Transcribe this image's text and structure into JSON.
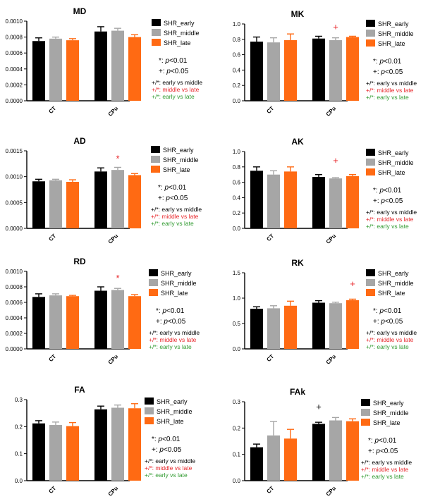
{
  "colors": {
    "early": "#000000",
    "middle": "#a6a6a6",
    "late": "#ff6a13",
    "red": "#e8262a",
    "green": "#2f9a2f",
    "black": "#000000"
  },
  "legend": {
    "entries": [
      "SHR_early",
      "SHR_middle",
      "SHR_late"
    ],
    "sig1_sym": "*: ",
    "sig1_p": "p",
    "sig1_val": "<0.01",
    "sig2_sym": "+: ",
    "sig2_p": "p",
    "sig2_val": "<0.05",
    "cmp1": "+/*: early vs middle",
    "cmp2": "+/*: middle vs late",
    "cmp3": "+/*: early vs late"
  },
  "chart_data": [
    {
      "type": "bar",
      "title": "MD",
      "categories": [
        "CT",
        "CPu"
      ],
      "series": [
        {
          "name": "SHR_early",
          "values": [
            0.00075,
            0.00087
          ],
          "errors": [
            4e-05,
            6e-05
          ]
        },
        {
          "name": "SHR_middle",
          "values": [
            0.00078,
            0.00088
          ],
          "errors": [
            2e-05,
            3e-05
          ]
        },
        {
          "name": "SHR_late",
          "values": [
            0.00076,
            0.0008
          ],
          "errors": [
            2e-05,
            3e-05
          ]
        }
      ],
      "ylim": [
        0,
        0.001
      ],
      "yticks": [
        "0.0000",
        "0.0002",
        "0.0004",
        "0.0006",
        "0.0008",
        "0.0010"
      ],
      "annotations": []
    },
    {
      "type": "bar",
      "title": "MK",
      "categories": [
        "CT",
        "CPu"
      ],
      "series": [
        {
          "name": "SHR_early",
          "values": [
            0.77,
            0.81
          ],
          "errors": [
            0.06,
            0.03
          ]
        },
        {
          "name": "SHR_middle",
          "values": [
            0.76,
            0.79
          ],
          "errors": [
            0.06,
            0.03
          ]
        },
        {
          "name": "SHR_late",
          "values": [
            0.79,
            0.83
          ],
          "errors": [
            0.08,
            0.01
          ]
        }
      ],
      "ylim": [
        0,
        1.0
      ],
      "yticks": [
        "0.0",
        "0.2",
        "0.4",
        "0.6",
        "0.8",
        "1.0"
      ],
      "annotations": [
        {
          "text": "+",
          "category": 1,
          "series": 1,
          "y": 0.97,
          "color": "red"
        }
      ]
    },
    {
      "type": "bar",
      "title": "AD",
      "categories": [
        "CT",
        "CPu"
      ],
      "series": [
        {
          "name": "SHR_early",
          "values": [
            0.00091,
            0.0011
          ],
          "errors": [
            4e-05,
            7e-05
          ]
        },
        {
          "name": "SHR_middle",
          "values": [
            0.00093,
            0.00113
          ],
          "errors": [
            2e-05,
            5e-05
          ]
        },
        {
          "name": "SHR_late",
          "values": [
            0.0009,
            0.00103
          ],
          "errors": [
            4e-05,
            3e-05
          ]
        }
      ],
      "ylim": [
        0,
        0.0015
      ],
      "yticks": [
        "0.0000",
        "0.0005",
        "0.0010",
        "0.0015"
      ],
      "annotations": [
        {
          "text": "*",
          "category": 1,
          "series": 1,
          "y": 0.00136,
          "color": "red"
        }
      ]
    },
    {
      "type": "bar",
      "title": "AK",
      "categories": [
        "CT",
        "CPu"
      ],
      "series": [
        {
          "name": "SHR_early",
          "values": [
            0.75,
            0.67
          ],
          "errors": [
            0.05,
            0.03
          ]
        },
        {
          "name": "SHR_middle",
          "values": [
            0.7,
            0.65
          ],
          "errors": [
            0.05,
            0.01
          ]
        },
        {
          "name": "SHR_late",
          "values": [
            0.74,
            0.68
          ],
          "errors": [
            0.06,
            0.02
          ]
        }
      ],
      "ylim": [
        0,
        1.0
      ],
      "yticks": [
        "0.0",
        "0.2",
        "0.4",
        "0.6",
        "0.8",
        "1.0"
      ],
      "annotations": [
        {
          "text": "+",
          "category": 1,
          "series": 1,
          "y": 0.89,
          "color": "red"
        }
      ]
    },
    {
      "type": "bar",
      "title": "RD",
      "categories": [
        "CT",
        "CPu"
      ],
      "series": [
        {
          "name": "SHR_early",
          "values": [
            0.00067,
            0.00075
          ],
          "errors": [
            4e-05,
            5e-05
          ]
        },
        {
          "name": "SHR_middle",
          "values": [
            0.00069,
            0.00076
          ],
          "errors": [
            2e-05,
            2e-05
          ]
        },
        {
          "name": "SHR_late",
          "values": [
            0.00068,
            0.00068
          ],
          "errors": [
            1e-05,
            2e-05
          ]
        }
      ],
      "ylim": [
        0,
        0.001
      ],
      "yticks": [
        "0.0000",
        "0.0002",
        "0.0004",
        "0.0006",
        "0.0008",
        "0.0010"
      ],
      "annotations": [
        {
          "text": "*",
          "category": 1,
          "series": 1,
          "y": 0.00092,
          "color": "red"
        }
      ]
    },
    {
      "type": "bar",
      "title": "RK",
      "categories": [
        "CT",
        "CPu"
      ],
      "series": [
        {
          "name": "SHR_early",
          "values": [
            0.79,
            0.91
          ],
          "errors": [
            0.04,
            0.04
          ]
        },
        {
          "name": "SHR_middle",
          "values": [
            0.8,
            0.9
          ],
          "errors": [
            0.05,
            0.02
          ]
        },
        {
          "name": "SHR_late",
          "values": [
            0.85,
            0.96
          ],
          "errors": [
            0.09,
            0.02
          ]
        }
      ],
      "ylim": [
        0,
        1.5
      ],
      "yticks": [
        "0.0",
        "0.5",
        "1.0",
        "1.5"
      ],
      "annotations": [
        {
          "text": "+",
          "category": 1,
          "series": 2,
          "y": 1.29,
          "color": "red"
        }
      ]
    },
    {
      "type": "bar",
      "title": "FA",
      "categories": [
        "CT",
        "CPu"
      ],
      "series": [
        {
          "name": "SHR_early",
          "values": [
            0.212,
            0.264
          ],
          "errors": [
            0.01,
            0.012
          ]
        },
        {
          "name": "SHR_middle",
          "values": [
            0.206,
            0.27
          ],
          "errors": [
            0.011,
            0.01
          ]
        },
        {
          "name": "SHR_late",
          "values": [
            0.202,
            0.268
          ],
          "errors": [
            0.013,
            0.017
          ]
        }
      ],
      "ylim": [
        0,
        0.3
      ],
      "yticks": [
        "0.0",
        "0.1",
        "0.2",
        "0.3"
      ],
      "annotations": []
    },
    {
      "type": "bar",
      "title": "FAk",
      "categories": [
        "CT",
        "CPu"
      ],
      "series": [
        {
          "name": "SHR_early",
          "values": [
            0.127,
            0.216
          ],
          "errors": [
            0.012,
            0.006
          ]
        },
        {
          "name": "SHR_middle",
          "values": [
            0.172,
            0.229
          ],
          "errors": [
            0.053,
            0.011
          ]
        },
        {
          "name": "SHR_late",
          "values": [
            0.16,
            0.226
          ],
          "errors": [
            0.035,
            0.009
          ]
        }
      ],
      "ylim": [
        0,
        0.3
      ],
      "yticks": [
        "0.0",
        "0.1",
        "0.2",
        "0.3"
      ],
      "annotations": [
        {
          "text": "+",
          "category": 1,
          "series": 0,
          "y": 0.283,
          "color": "black"
        }
      ]
    }
  ]
}
